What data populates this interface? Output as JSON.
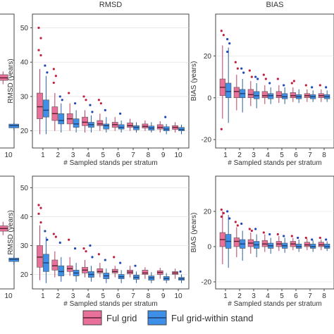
{
  "colors": {
    "full_grid": "#e8709a",
    "within_stand": "#3d8fe8",
    "median": "#5a2030",
    "whisker_pink": "#c23a5e",
    "whisker_blue": "#2b5fa8",
    "frame": "#444444",
    "grid": "#dddddd",
    "outlier_pink": "#c21e3e",
    "outlier_blue": "#1f47b8"
  },
  "legend": {
    "items": [
      {
        "label": "Ful grid"
      },
      {
        "label": "Ful grid-within stand"
      }
    ]
  },
  "chart_data": [
    {
      "panel": "top-left-partial",
      "type": "box",
      "categories": [
        "10"
      ],
      "ylim": [
        13,
        55
      ],
      "series": [
        {
          "name": "Ful grid",
          "values": [
            [
              33,
              34.2,
              35,
              36,
              37
            ]
          ]
        },
        {
          "name": "Ful grid-within stand",
          "values": [
            [
              18.5,
              19.3,
              20,
              20.5,
              21
            ]
          ]
        }
      ]
    },
    {
      "panel": "top-middle",
      "type": "box",
      "title": "RMSD",
      "xlabel": "# Sampled stands per stratum",
      "ylabel": "RMSD (years)",
      "categories": [
        "1",
        "2",
        "3",
        "4",
        "5",
        "6",
        "7",
        "8",
        "9",
        "10"
      ],
      "yticks": [
        20,
        30,
        40,
        50
      ],
      "ylim": [
        15,
        54
      ],
      "series": [
        {
          "name": "Ful grid",
          "values": [
            [
              19,
              23.5,
              27,
              31,
              38
            ],
            [
              20,
              23,
              25,
              27,
              31
            ],
            [
              20,
              22,
              23.5,
              25,
              28
            ],
            [
              19.5,
              21.5,
              22.5,
              24,
              26
            ],
            [
              20,
              21.5,
              22,
              23,
              25
            ],
            [
              20,
              21,
              21.8,
              22.5,
              24
            ],
            [
              20,
              21,
              21.5,
              22.3,
              23.5
            ],
            [
              20,
              20.8,
              21.3,
              22,
              23
            ],
            [
              19.5,
              20.5,
              21,
              21.8,
              22.8
            ],
            [
              19.5,
              20.4,
              21,
              21.5,
              22.5
            ]
          ],
          "outliers": [
            [
              50,
              47,
              43.5,
              42
            ],
            [
              38,
              36,
              34
            ],
            [
              31
            ],
            [
              30,
              29
            ],
            [
              29,
              28
            ],
            [],
            [],
            [],
            [],
            []
          ]
        },
        {
          "name": "Ful grid-within stand",
          "values": [
            [
              19,
              24,
              26,
              29,
              36
            ],
            [
              19.5,
              22,
              23,
              25,
              28
            ],
            [
              19.5,
              21,
              22,
              23.5,
              26
            ],
            [
              19.5,
              21,
              21.8,
              22.5,
              24.5
            ],
            [
              19.5,
              20.5,
              21.5,
              22,
              24
            ],
            [
              19.5,
              20.5,
              21,
              21.8,
              23
            ],
            [
              19.5,
              20.3,
              21,
              21.5,
              22.5
            ],
            [
              19.5,
              20.2,
              20.8,
              21.4,
              22.5
            ],
            [
              19,
              20,
              20.5,
              21.2,
              22
            ],
            [
              19,
              20,
              20.4,
              21,
              21.8
            ]
          ],
          "outliers": [
            [
              39,
              37
            ],
            [
              30,
              29
            ],
            [
              28
            ],
            [
              27.5,
              25.5
            ],
            [
              26
            ],
            [
              25
            ],
            [],
            [],
            [
              24
            ],
            []
          ]
        }
      ]
    },
    {
      "panel": "top-right",
      "type": "box",
      "title": "BIAS",
      "xlabel": "# Sampled stands per stratum",
      "ylabel": "BIAS (years)",
      "categories": [
        "1",
        "2",
        "3",
        "4",
        "5",
        "6",
        "7",
        "8"
      ],
      "yticks": [
        -20,
        0,
        20
      ],
      "ylim": [
        -24,
        40
      ],
      "series": [
        {
          "name": "Ful grid",
          "values": [
            [
              -10,
              1,
              5,
              9,
              25
            ],
            [
              -6,
              0,
              3,
              5,
              11
            ],
            [
              -4,
              0,
              1.5,
              4,
              8
            ],
            [
              -3,
              0,
              1,
              3,
              6
            ],
            [
              -2.5,
              0,
              1,
              3,
              6
            ],
            [
              -2,
              0,
              1,
              2.5,
              5
            ],
            [
              -2,
              0,
              1,
              2,
              4
            ],
            [
              -2,
              0,
              1,
              2,
              4
            ]
          ],
          "outliers": [
            [
              32,
              30,
              -15
            ],
            [
              17,
              14
            ],
            [
              13,
              10
            ],
            [
              11,
              9
            ],
            [
              9
            ],
            [
              7,
              8
            ],
            [
              6
            ],
            [
              6
            ]
          ]
        },
        {
          "name": "Ful grid-within stand",
          "values": [
            [
              -12,
              0,
              3,
              7,
              24
            ],
            [
              -7,
              0,
              2,
              4,
              9
            ],
            [
              -5,
              -0.5,
              1,
              3,
              7
            ],
            [
              -3,
              -0.5,
              1,
              2,
              5
            ],
            [
              -3,
              -0.5,
              0.5,
              2,
              5
            ],
            [
              -2.5,
              -0.5,
              0.5,
              1.5,
              4
            ],
            [
              -2,
              -0.5,
              0.5,
              1.5,
              3.5
            ],
            [
              -2,
              -0.5,
              0.5,
              1.5,
              3.5
            ]
          ],
          "outliers": [
            [
              28,
              26,
              22
            ],
            [
              14,
              12
            ],
            [
              10,
              9
            ],
            [
              7
            ],
            [
              6
            ],
            [],
            [
              5
            ],
            [
              5
            ]
          ]
        }
      ]
    },
    {
      "panel": "bottom-left-partial",
      "type": "box",
      "categories": [
        "10"
      ],
      "ylim": [
        13,
        55
      ],
      "series": [
        {
          "name": "Ful grid",
          "values": [
            [
              33,
              34.5,
              35.5,
              36.5,
              38
            ]
          ]
        },
        {
          "name": "Ful grid-within stand",
          "values": [
            [
              22,
              23.2,
              24,
              24.5,
              25.5
            ]
          ]
        }
      ]
    },
    {
      "panel": "bottom-middle",
      "type": "box",
      "xlabel": "# Sampled stands per stratum",
      "ylabel": "RMSD (years)",
      "categories": [
        "1",
        "2",
        "3",
        "4",
        "5",
        "6",
        "7",
        "8",
        "9",
        "10"
      ],
      "yticks": [
        20,
        30,
        40,
        50
      ],
      "ylim": [
        15,
        54
      ],
      "series": [
        {
          "name": "Ful grid",
          "values": [
            [
              18,
              22.5,
              26,
              30,
              37
            ],
            [
              19,
              21.5,
              23,
              25,
              28
            ],
            [
              19.5,
              21,
              22,
              23,
              26
            ],
            [
              19,
              20.5,
              21.5,
              22.5,
              25
            ],
            [
              19,
              20.5,
              21,
              22,
              24
            ],
            [
              19,
              20.5,
              21,
              21.8,
              23
            ],
            [
              19,
              20.2,
              20.8,
              21.5,
              23
            ],
            [
              18.5,
              20,
              20.5,
              21.5,
              22.5
            ],
            [
              18.5,
              20,
              20.7,
              21.3,
              22.3
            ],
            [
              18.5,
              20,
              20.5,
              21,
              22
            ]
          ],
          "outliers": [
            [
              44,
              43,
              41,
              38
            ],
            [
              34,
              33
            ],
            [
              32
            ],
            [
              29,
              28
            ],
            [
              27
            ],
            [
              26
            ],
            [],
            [],
            [],
            []
          ]
        },
        {
          "name": "Ful grid-within stand",
          "values": [
            [
              17,
              21,
              24,
              27,
              33
            ],
            [
              17.5,
              19.5,
              21,
              23,
              26
            ],
            [
              17.5,
              19.5,
              20.5,
              21.5,
              24
            ],
            [
              17.5,
              19,
              20,
              21,
              23
            ],
            [
              17,
              18.5,
              19.5,
              20.5,
              22
            ],
            [
              17,
              18.5,
              19.2,
              20,
              21.5
            ],
            [
              17,
              18.3,
              19,
              19.8,
              21
            ],
            [
              17,
              18,
              18.8,
              19.5,
              20.8
            ],
            [
              17,
              18,
              18.6,
              19.3,
              20.5
            ],
            [
              17,
              18,
              18.5,
              19,
              20
            ]
          ],
          "outliers": [
            [
              35,
              32
            ],
            [
              31
            ],
            [
              29
            ],
            [
              30,
              26
            ],
            [
              25
            ],
            [
              24
            ],
            [
              23
            ],
            [],
            [],
            [
              21
            ]
          ]
        }
      ]
    },
    {
      "panel": "bottom-right",
      "type": "box",
      "xlabel": "# Sampled stands per stratum",
      "ylabel": "BIAS (years)",
      "categories": [
        "1",
        "2",
        "3",
        "4",
        "5",
        "6",
        "7",
        "8"
      ],
      "yticks": [
        -20,
        0,
        20
      ],
      "ylim": [
        -24,
        40
      ],
      "series": [
        {
          "name": "Ful grid",
          "values": [
            [
              -10,
              0,
              4,
              8,
              20
            ],
            [
              -6,
              0,
              3,
              5,
              11
            ],
            [
              -4,
              0,
              2,
              4,
              8
            ],
            [
              -3,
              0,
              1.5,
              3.5,
              7
            ],
            [
              -2.5,
              0,
              1.5,
              3,
              6
            ],
            [
              -2,
              0,
              1.5,
              3,
              5
            ],
            [
              -2,
              0,
              1,
              2.5,
              4.5
            ],
            [
              -2,
              0,
              1,
              2.5,
              4
            ]
          ],
          "outliers": [
            [
              21,
              19,
              17
            ],
            [
              14,
              12
            ],
            [
              10,
              9
            ],
            [
              8
            ],
            [
              7
            ],
            [
              6
            ],
            [
              5
            ],
            [
              5
            ]
          ]
        },
        {
          "name": "Ful grid-within stand",
          "values": [
            [
              -12,
              -1,
              3,
              7,
              18
            ],
            [
              -8,
              -1,
              1.5,
              4,
              9
            ],
            [
              -6,
              -1,
              1,
              3,
              7
            ],
            [
              -4,
              -1,
              0.5,
              2,
              5
            ],
            [
              -3.5,
              -1,
              0.5,
              2,
              5
            ],
            [
              -3,
              -1,
              0,
              1.5,
              4
            ],
            [
              -3,
              -1,
              0,
              1.5,
              3.5
            ],
            [
              -2.5,
              -1,
              0,
              1.5,
              3
            ]
          ],
          "outliers": [
            [
              20,
              16
            ],
            [
              13
            ],
            [
              10
            ],
            [
              7
            ],
            [
              6
            ],
            [
              5
            ],
            [
              4
            ],
            [
              4
            ]
          ]
        }
      ]
    }
  ]
}
